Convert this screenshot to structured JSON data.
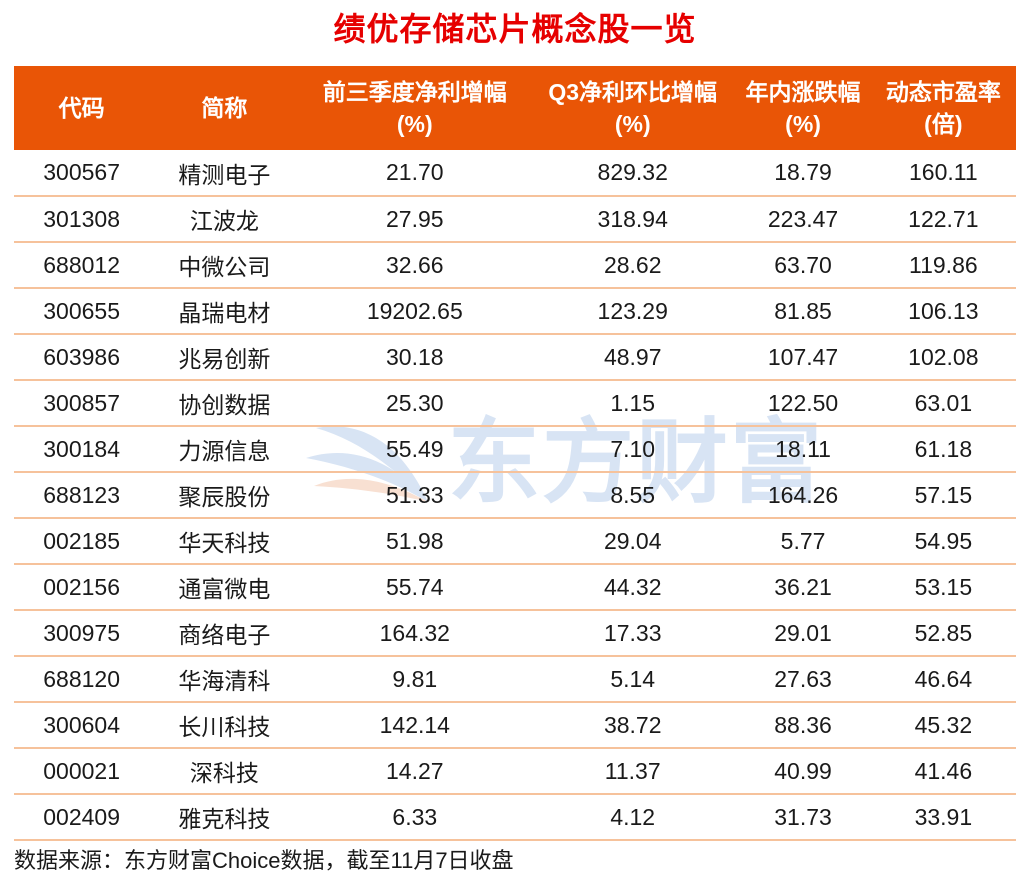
{
  "title": "绩优存储芯片概念股一览",
  "colors": {
    "header_bg": "#E95506",
    "title_red": "#E60000",
    "row_divider": "#F6C29B",
    "watermark_blue": "#D8E4F4",
    "watermark_peach": "#F8E0D2",
    "header_text": "#FFFFFF",
    "body_text": "#1A1A1A"
  },
  "watermark": {
    "logo_icon": "eastmoney-swoosh-icon",
    "text": "东方财富"
  },
  "table": {
    "columns": [
      {
        "label": "代码",
        "unit": ""
      },
      {
        "label": "简称",
        "unit": ""
      },
      {
        "label": "前三季度净利增幅",
        "unit": "(%)"
      },
      {
        "label": "Q3净利环比增幅",
        "unit": "(%)"
      },
      {
        "label": "年内涨跌幅",
        "unit": "(%)"
      },
      {
        "label": "动态市盈率",
        "unit": "(倍)"
      }
    ],
    "rows": [
      {
        "cells": [
          "300567",
          "精测电子",
          "21.70",
          "829.32",
          "18.79",
          "160.11"
        ]
      },
      {
        "cells": [
          "301308",
          "江波龙",
          "27.95",
          "318.94",
          "223.47",
          "122.71"
        ]
      },
      {
        "cells": [
          "688012",
          "中微公司",
          "32.66",
          "28.62",
          "63.70",
          "119.86"
        ]
      },
      {
        "cells": [
          "300655",
          "晶瑞电材",
          "19202.65",
          "123.29",
          "81.85",
          "106.13"
        ]
      },
      {
        "cells": [
          "603986",
          "兆易创新",
          "30.18",
          "48.97",
          "107.47",
          "102.08"
        ]
      },
      {
        "cells": [
          "300857",
          "协创数据",
          "25.30",
          "1.15",
          "122.50",
          "63.01"
        ]
      },
      {
        "cells": [
          "300184",
          "力源信息",
          "55.49",
          "7.10",
          "18.11",
          "61.18"
        ]
      },
      {
        "cells": [
          "688123",
          "聚辰股份",
          "51.33",
          "8.55",
          "164.26",
          "57.15"
        ]
      },
      {
        "cells": [
          "002185",
          "华天科技",
          "51.98",
          "29.04",
          "5.77",
          "54.95"
        ]
      },
      {
        "cells": [
          "002156",
          "通富微电",
          "55.74",
          "44.32",
          "36.21",
          "53.15"
        ]
      },
      {
        "cells": [
          "300975",
          "商络电子",
          "164.32",
          "17.33",
          "29.01",
          "52.85"
        ]
      },
      {
        "cells": [
          "688120",
          "华海清科",
          "9.81",
          "5.14",
          "27.63",
          "46.64"
        ]
      },
      {
        "cells": [
          "300604",
          "长川科技",
          "142.14",
          "38.72",
          "88.36",
          "45.32"
        ]
      },
      {
        "cells": [
          "000021",
          "深科技",
          "14.27",
          "11.37",
          "40.99",
          "41.46"
        ]
      },
      {
        "cells": [
          "002409",
          "雅克科技",
          "6.33",
          "4.12",
          "31.73",
          "33.91"
        ]
      }
    ]
  },
  "footer": {
    "source_note": "数据来源：东方财富Choice数据，截至11月7日收盘"
  },
  "chart_data": {
    "type": "table",
    "title": "绩优存储芯片概念股一览",
    "columns": [
      "代码",
      "简称",
      "前三季度净利增幅(%)",
      "Q3净利环比增幅(%)",
      "年内涨跌幅(%)",
      "动态市盈率(倍)"
    ],
    "rows": [
      [
        "300567",
        "精测电子",
        21.7,
        829.32,
        18.79,
        160.11
      ],
      [
        "301308",
        "江波龙",
        27.95,
        318.94,
        223.47,
        122.71
      ],
      [
        "688012",
        "中微公司",
        32.66,
        28.62,
        63.7,
        119.86
      ],
      [
        "300655",
        "晶瑞电材",
        19202.65,
        123.29,
        81.85,
        106.13
      ],
      [
        "603986",
        "兆易创新",
        30.18,
        48.97,
        107.47,
        102.08
      ],
      [
        "300857",
        "协创数据",
        25.3,
        1.15,
        122.5,
        63.01
      ],
      [
        "300184",
        "力源信息",
        55.49,
        7.1,
        18.11,
        61.18
      ],
      [
        "688123",
        "聚辰股份",
        51.33,
        8.55,
        164.26,
        57.15
      ],
      [
        "002185",
        "华天科技",
        51.98,
        29.04,
        5.77,
        54.95
      ],
      [
        "002156",
        "通富微电",
        55.74,
        44.32,
        36.21,
        53.15
      ],
      [
        "300975",
        "商络电子",
        164.32,
        17.33,
        29.01,
        52.85
      ],
      [
        "688120",
        "华海清科",
        9.81,
        5.14,
        27.63,
        46.64
      ],
      [
        "300604",
        "长川科技",
        142.14,
        38.72,
        88.36,
        45.32
      ],
      [
        "000021",
        "深科技",
        14.27,
        11.37,
        40.99,
        41.46
      ],
      [
        "002409",
        "雅克科技",
        6.33,
        4.12,
        31.73,
        33.91
      ]
    ],
    "source_note": "数据来源：东方财富Choice数据，截至11月7日收盘",
    "layout": {
      "header_bg": "#E95506",
      "row_divider": "#F6C29B",
      "title_color": "#E60000"
    }
  }
}
